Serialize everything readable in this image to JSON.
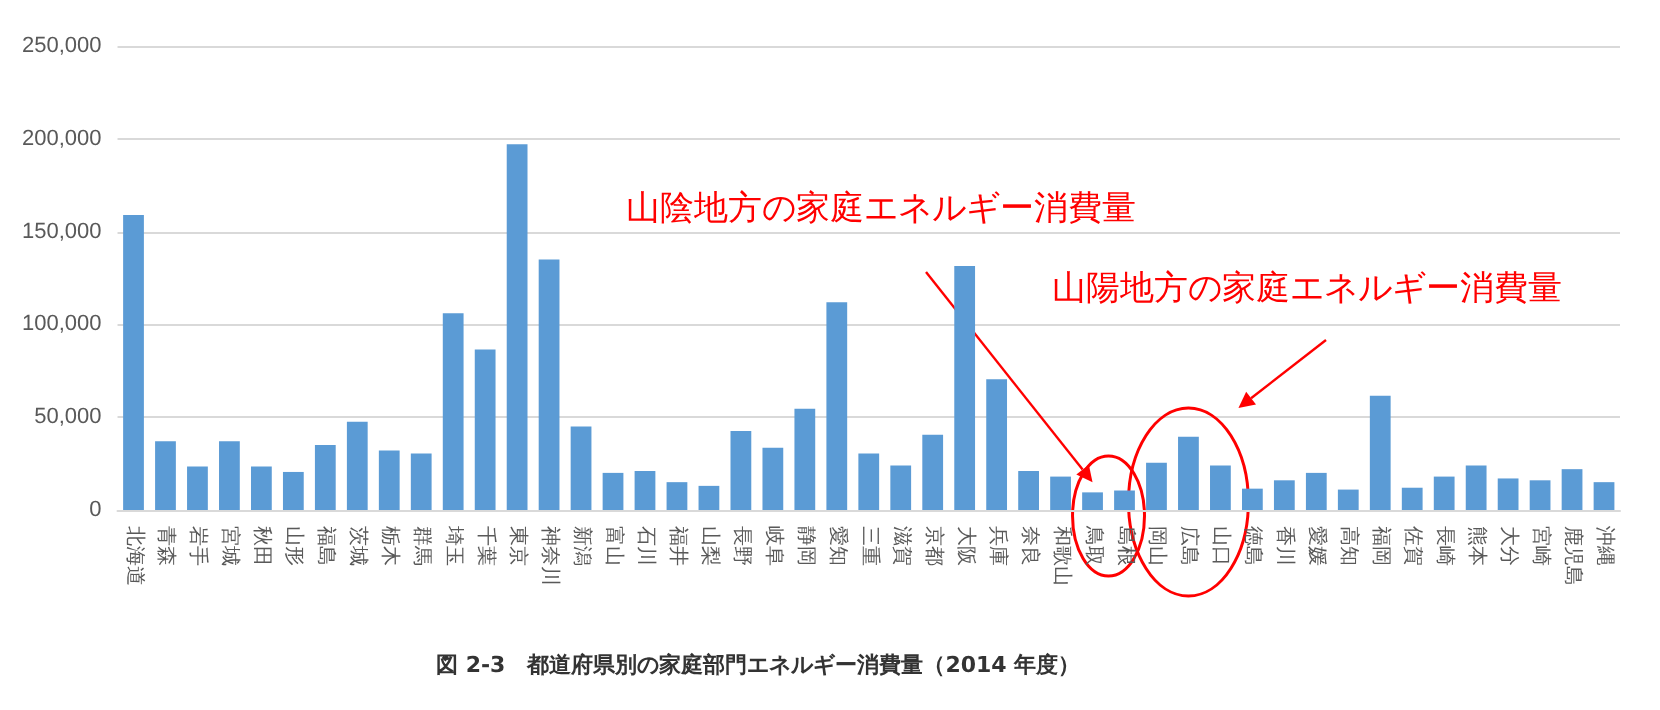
{
  "chart_data": {
    "type": "bar",
    "title": "図 2-3　都道府県別の家庭部門エネルギー消費量（2014 年度）",
    "categories": [
      "北海道",
      "青森",
      "岩手",
      "宮城",
      "秋田",
      "山形",
      "福島",
      "茨城",
      "栃木",
      "群馬",
      "埼玉",
      "千葉",
      "東京",
      "神奈川",
      "新潟",
      "富山",
      "石川",
      "福井",
      "山梨",
      "長野",
      "岐阜",
      "静岡",
      "愛知",
      "三重",
      "滋賀",
      "京都",
      "大阪",
      "兵庫",
      "奈良",
      "和歌山",
      "鳥取",
      "島根",
      "岡山",
      "広島",
      "山口",
      "徳島",
      "香川",
      "愛媛",
      "高知",
      "福岡",
      "佐賀",
      "長崎",
      "熊本",
      "大分",
      "宮崎",
      "鹿児島",
      "沖縄"
    ],
    "values": [
      159000,
      37000,
      23500,
      37000,
      23500,
      20500,
      35000,
      47500,
      32000,
      30500,
      106000,
      86500,
      197000,
      135000,
      45000,
      20000,
      21000,
      15000,
      13000,
      42500,
      33500,
      54500,
      112000,
      30500,
      24000,
      40500,
      131500,
      70500,
      21000,
      18000,
      9500,
      10500,
      25500,
      39500,
      24000,
      11500,
      16000,
      20000,
      11000,
      61500,
      12000,
      18000,
      24000,
      17000,
      16000,
      22000,
      15000
    ],
    "color": "#5b9bd5",
    "ylim": [
      0,
      250000
    ],
    "yticks": [
      {
        "value": 0,
        "label": "0"
      },
      {
        "value": 50000,
        "label": "50,000"
      },
      {
        "value": 100000,
        "label": "100,000"
      },
      {
        "value": 150000,
        "label": "150,000"
      },
      {
        "value": 200000,
        "label": "200,000"
      },
      {
        "value": 250000,
        "label": "250,000"
      }
    ],
    "grid": "y",
    "annotations": [
      {
        "text": "山陰地方の家庭エネルギー消費量",
        "x": "鳥取",
        "y": 15000
      },
      "山陽地方の家庭エネルギー消費量"
    ]
  }
}
